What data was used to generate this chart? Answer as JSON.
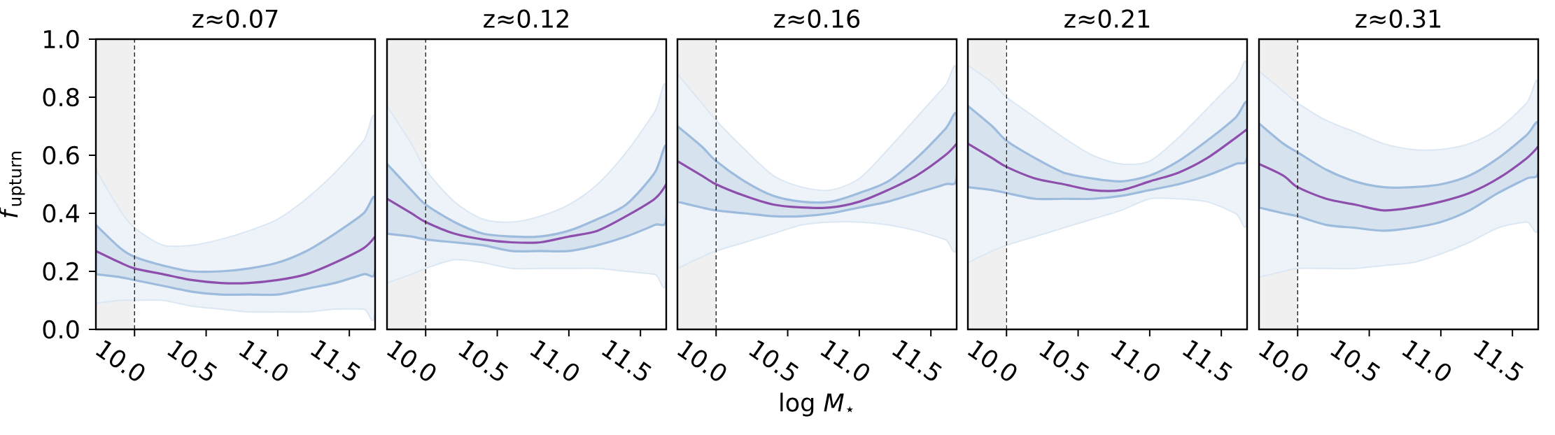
{
  "chart_data": [
    {
      "type": "line",
      "title": "z≈0.07",
      "ylabel": "*f*$_{upturn}$",
      "xlim": [
        9.73,
        11.68
      ],
      "ylim": [
        0,
        1
      ],
      "xticks": [
        {
          "value": 10,
          "label": "10.0"
        },
        {
          "value": 10.5,
          "label": "10.5"
        },
        {
          "value": 11,
          "label": "11.0"
        },
        {
          "value": 11.5,
          "label": "11.5"
        }
      ],
      "yticks": [
        {
          "value": 0,
          "label": "0.0"
        },
        {
          "value": 0.2,
          "label": "0.2"
        },
        {
          "value": 0.4,
          "label": "0.4"
        },
        {
          "value": 0.6,
          "label": "0.6"
        },
        {
          "value": 0.8,
          "label": "0.8"
        },
        {
          "value": 1,
          "label": "1.0"
        }
      ],
      "x": [
        9.73,
        9.9,
        10.0,
        10.2,
        10.4,
        10.6,
        10.8,
        11.0,
        11.2,
        11.4,
        11.6,
        11.68
      ],
      "series": [
        {
          "color": "#dbe7f3",
          "values": [
            null,
            null,
            null,
            null,
            null,
            null,
            null,
            null,
            null,
            null,
            null,
            null
          ],
          "upper": [
            0.55,
            0.41,
            0.35,
            0.29,
            0.29,
            0.31,
            0.34,
            0.38,
            0.45,
            0.54,
            0.65,
            0.71
          ],
          "lower": [
            0.09,
            0.1,
            0.1,
            0.1,
            0.08,
            0.07,
            0.06,
            0.06,
            0.06,
            0.07,
            0.07,
            0.07
          ]
        },
        {
          "color": "#8e4fac",
          "values": [
            0.27,
            0.23,
            0.21,
            0.19,
            0.17,
            0.16,
            0.16,
            0.17,
            0.19,
            0.23,
            0.28,
            0.32
          ],
          "upper": [
            0.36,
            0.28,
            0.25,
            0.22,
            0.2,
            0.2,
            0.21,
            0.23,
            0.27,
            0.33,
            0.4,
            0.45
          ],
          "lower": [
            0.19,
            0.18,
            0.17,
            0.15,
            0.13,
            0.12,
            0.12,
            0.12,
            0.14,
            0.16,
            0.19,
            0.2
          ]
        }
      ],
      "bands": [
        {
          "axis": "x",
          "from": 9.73,
          "to": 10.0,
          "color": "#f0f0f0"
        }
      ],
      "ref_lines": [
        {
          "axis": "x",
          "value": 10.0,
          "color": "#000000",
          "line_style": "dashed"
        }
      ]
    },
    {
      "type": "line",
      "title": "z≈0.12",
      "xlim": [
        9.73,
        11.68
      ],
      "ylim": [
        0,
        1
      ],
      "tick_labels": "x",
      "xticks": [
        {
          "value": 10,
          "label": "10.0"
        },
        {
          "value": 10.5,
          "label": "10.5"
        },
        {
          "value": 11,
          "label": "11.0"
        },
        {
          "value": 11.5,
          "label": "11.5"
        }
      ],
      "x": [
        9.73,
        9.9,
        10.0,
        10.2,
        10.4,
        10.6,
        10.8,
        11.0,
        11.2,
        11.4,
        11.6,
        11.68
      ],
      "series": [
        {
          "color": "#dbe7f3",
          "values": [
            null,
            null,
            null,
            null,
            null,
            null,
            null,
            null,
            null,
            null,
            null,
            null
          ],
          "upper": [
            0.77,
            0.64,
            0.55,
            0.44,
            0.38,
            0.37,
            0.39,
            0.43,
            0.5,
            0.61,
            0.75,
            0.82
          ],
          "lower": [
            0.16,
            0.19,
            0.21,
            0.24,
            0.23,
            0.21,
            0.21,
            0.21,
            0.21,
            0.2,
            0.19,
            0.18
          ]
        },
        {
          "color": "#8e4fac",
          "values": [
            0.45,
            0.4,
            0.37,
            0.33,
            0.31,
            0.3,
            0.3,
            0.32,
            0.34,
            0.39,
            0.45,
            0.5
          ],
          "upper": [
            0.57,
            0.48,
            0.43,
            0.37,
            0.33,
            0.32,
            0.32,
            0.34,
            0.38,
            0.43,
            0.54,
            0.63
          ],
          "lower": [
            0.33,
            0.32,
            0.31,
            0.3,
            0.29,
            0.27,
            0.27,
            0.27,
            0.29,
            0.32,
            0.36,
            0.38
          ]
        }
      ],
      "bands": [
        {
          "axis": "x",
          "from": 9.73,
          "to": 10.0,
          "color": "#f0f0f0"
        }
      ],
      "ref_lines": [
        {
          "axis": "x",
          "value": 10.0,
          "color": "#000000",
          "line_style": "dashed"
        }
      ]
    },
    {
      "type": "line",
      "title": "z≈0.16",
      "xlabel": "log *M*$_{⋆}$",
      "xlim": [
        9.73,
        11.68
      ],
      "ylim": [
        0,
        1
      ],
      "tick_labels": "x",
      "xticks": [
        {
          "value": 10,
          "label": "10.0"
        },
        {
          "value": 10.5,
          "label": "10.5"
        },
        {
          "value": 11,
          "label": "11.0"
        },
        {
          "value": 11.5,
          "label": "11.5"
        }
      ],
      "x": [
        9.73,
        9.9,
        10.0,
        10.2,
        10.4,
        10.6,
        10.8,
        11.0,
        11.2,
        11.4,
        11.6,
        11.68
      ],
      "series": [
        {
          "color": "#dbe7f3",
          "values": [
            null,
            null,
            null,
            null,
            null,
            null,
            null,
            null,
            null,
            null,
            null,
            null
          ],
          "upper": [
            0.88,
            0.78,
            0.72,
            0.62,
            0.53,
            0.49,
            0.48,
            0.52,
            0.62,
            0.73,
            0.84,
            0.88
          ],
          "lower": [
            0.21,
            0.25,
            0.27,
            0.3,
            0.33,
            0.36,
            0.37,
            0.37,
            0.36,
            0.34,
            0.31,
            0.3
          ]
        },
        {
          "color": "#8e4fac",
          "values": [
            0.58,
            0.53,
            0.5,
            0.46,
            0.43,
            0.42,
            0.42,
            0.44,
            0.48,
            0.53,
            0.6,
            0.64
          ],
          "upper": [
            0.7,
            0.63,
            0.58,
            0.51,
            0.46,
            0.44,
            0.44,
            0.47,
            0.51,
            0.59,
            0.69,
            0.74
          ],
          "lower": [
            0.44,
            0.42,
            0.41,
            0.4,
            0.39,
            0.39,
            0.4,
            0.42,
            0.44,
            0.47,
            0.5,
            0.52
          ]
        }
      ],
      "bands": [
        {
          "axis": "x",
          "from": 9.73,
          "to": 10.0,
          "color": "#f0f0f0"
        }
      ],
      "ref_lines": [
        {
          "axis": "x",
          "value": 10.0,
          "color": "#000000",
          "line_style": "dashed"
        }
      ]
    },
    {
      "type": "line",
      "title": "z≈0.21",
      "xlim": [
        9.73,
        11.68
      ],
      "ylim": [
        0,
        1
      ],
      "tick_labels": "x",
      "xticks": [
        {
          "value": 10,
          "label": "10.0"
        },
        {
          "value": 10.5,
          "label": "10.5"
        },
        {
          "value": 11,
          "label": "11.0"
        },
        {
          "value": 11.5,
          "label": "11.5"
        }
      ],
      "x": [
        9.73,
        9.9,
        10.0,
        10.2,
        10.4,
        10.6,
        10.8,
        11.0,
        11.2,
        11.4,
        11.6,
        11.68
      ],
      "series": [
        {
          "color": "#dbe7f3",
          "values": [
            null,
            null,
            null,
            null,
            null,
            null,
            null,
            null,
            null,
            null,
            null,
            null
          ],
          "upper": [
            0.91,
            0.85,
            0.8,
            0.73,
            0.66,
            0.6,
            0.57,
            0.58,
            0.66,
            0.76,
            0.86,
            0.9
          ],
          "lower": [
            0.23,
            0.27,
            0.29,
            0.32,
            0.35,
            0.38,
            0.41,
            0.45,
            0.45,
            0.44,
            0.4,
            0.38
          ]
        },
        {
          "color": "#8e4fac",
          "values": [
            0.64,
            0.59,
            0.56,
            0.52,
            0.5,
            0.48,
            0.48,
            0.51,
            0.54,
            0.59,
            0.66,
            0.69
          ],
          "upper": [
            0.77,
            0.7,
            0.65,
            0.59,
            0.54,
            0.52,
            0.51,
            0.53,
            0.58,
            0.65,
            0.73,
            0.78
          ],
          "lower": [
            0.49,
            0.48,
            0.47,
            0.45,
            0.45,
            0.45,
            0.46,
            0.48,
            0.5,
            0.53,
            0.57,
            0.59
          ]
        }
      ],
      "bands": [
        {
          "axis": "x",
          "from": 9.73,
          "to": 10.0,
          "color": "#f0f0f0"
        }
      ],
      "ref_lines": [
        {
          "axis": "x",
          "value": 10.0,
          "color": "#000000",
          "line_style": "dashed"
        }
      ]
    },
    {
      "type": "line",
      "title": "z≈0.31",
      "xlim": [
        9.73,
        11.68
      ],
      "ylim": [
        0,
        1
      ],
      "tick_labels": "x",
      "xticks": [
        {
          "value": 10,
          "label": "10.0"
        },
        {
          "value": 10.5,
          "label": "10.5"
        },
        {
          "value": 11,
          "label": "11.0"
        },
        {
          "value": 11.5,
          "label": "11.5"
        }
      ],
      "x": [
        9.73,
        9.9,
        10.0,
        10.2,
        10.4,
        10.6,
        10.8,
        11.0,
        11.2,
        11.4,
        11.6,
        11.68
      ],
      "series": [
        {
          "color": "#dbe7f3",
          "values": [
            null,
            null,
            null,
            null,
            null,
            null,
            null,
            null,
            null,
            null,
            null,
            null
          ],
          "upper": [
            0.89,
            0.82,
            0.78,
            0.72,
            0.68,
            0.64,
            0.62,
            0.62,
            0.64,
            0.69,
            0.78,
            0.84
          ],
          "lower": [
            0.18,
            0.2,
            0.21,
            0.21,
            0.21,
            0.22,
            0.23,
            0.26,
            0.3,
            0.35,
            0.37,
            0.36
          ]
        },
        {
          "color": "#8e4fac",
          "values": [
            0.57,
            0.53,
            0.49,
            0.45,
            0.43,
            0.41,
            0.42,
            0.44,
            0.47,
            0.52,
            0.59,
            0.63
          ],
          "upper": [
            0.71,
            0.64,
            0.61,
            0.55,
            0.51,
            0.49,
            0.49,
            0.5,
            0.53,
            0.59,
            0.67,
            0.71
          ],
          "lower": [
            0.42,
            0.4,
            0.39,
            0.36,
            0.35,
            0.34,
            0.35,
            0.37,
            0.41,
            0.47,
            0.52,
            0.54
          ]
        }
      ],
      "bands": [
        {
          "axis": "x",
          "from": 9.73,
          "to": 10.0,
          "color": "#f0f0f0"
        }
      ],
      "ref_lines": [
        {
          "axis": "x",
          "value": 10.0,
          "color": "#000000",
          "line_style": "dashed"
        }
      ]
    }
  ]
}
